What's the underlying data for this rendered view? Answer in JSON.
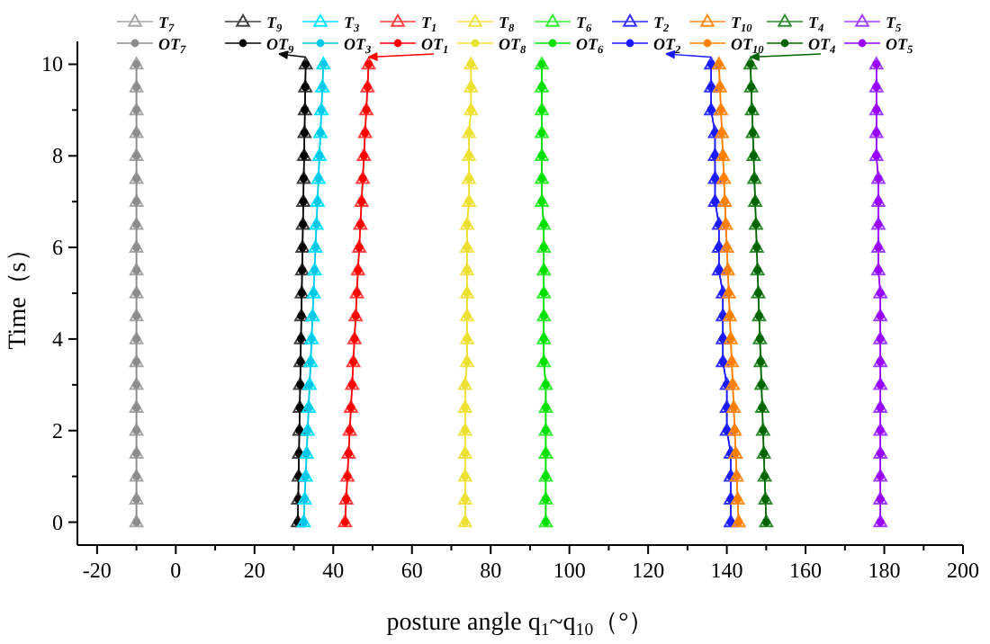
{
  "chart_data": {
    "type": "line",
    "xlabel": "posture angle q$_{1}$~q$_{10}$（°）",
    "ylabel": "Time（s）",
    "xlim": [
      -25,
      200
    ],
    "ylim": [
      -0.5,
      10.5
    ],
    "xticks": [
      -20,
      0,
      20,
      40,
      60,
      80,
      100,
      120,
      140,
      160,
      180,
      200
    ],
    "yticks": [
      0,
      2,
      4,
      6,
      8,
      10
    ],
    "grid": false,
    "legend": "top",
    "series": [
      {
        "name": "T$_{7}$",
        "color": "#a6a6a6",
        "marker": "triangle",
        "x": [
          -10,
          -10,
          -10,
          -10,
          -10,
          -10,
          -10,
          -10,
          -10,
          -10,
          -10,
          -10,
          -10,
          -10,
          -10,
          -10,
          -10,
          -10,
          -10,
          -10,
          -10
        ],
        "values": [
          0,
          0.5,
          1,
          1.5,
          2,
          2.5,
          3,
          3.5,
          4,
          4.5,
          5,
          5.5,
          6,
          6.5,
          7,
          7.5,
          8,
          8.5,
          9,
          9.5,
          10
        ]
      },
      {
        "name": "OT$_{7}$",
        "color": "#8c8c8c",
        "marker": "circle",
        "x": [
          -10,
          -10,
          -10,
          -10,
          -10,
          -10,
          -10,
          -10,
          -10,
          -10,
          -10,
          -10,
          -10,
          -10,
          -10,
          -10,
          -10,
          -10,
          -10,
          -10,
          -10
        ],
        "values": [
          0,
          0.5,
          1,
          1.5,
          2,
          2.5,
          3,
          3.5,
          4,
          4.5,
          5,
          5.5,
          6,
          6.5,
          7,
          7.5,
          8,
          8.5,
          9,
          9.5,
          10
        ]
      },
      {
        "name": "T$_{9}$",
        "color": "#404040",
        "marker": "triangle",
        "x": [
          31,
          31.1,
          31.2,
          31.3,
          31.4,
          31.5,
          31.6,
          31.7,
          31.8,
          31.9,
          32,
          32.1,
          32.2,
          32.3,
          32.4,
          32.5,
          32.6,
          32.7,
          32.8,
          32.9,
          33
        ],
        "values": [
          0,
          0.5,
          1,
          1.5,
          2,
          2.5,
          3,
          3.5,
          4,
          4.5,
          5,
          5.5,
          6,
          6.5,
          7,
          7.5,
          8,
          8.5,
          9,
          9.5,
          10
        ]
      },
      {
        "name": "OT$_{9}$",
        "color": "#000000",
        "marker": "circle",
        "x": [
          31,
          31.1,
          31.2,
          31.3,
          31.4,
          31.5,
          31.6,
          31.7,
          31.8,
          31.9,
          32,
          32.1,
          32.2,
          32.3,
          32.4,
          32.5,
          32.6,
          32.7,
          32.8,
          32.9,
          33
        ],
        "values": [
          0,
          0.5,
          1,
          1.5,
          2,
          2.5,
          3,
          3.5,
          4,
          4.5,
          5,
          5.5,
          6,
          6.5,
          7,
          7.5,
          8,
          8.5,
          9,
          9.5,
          10
        ]
      },
      {
        "name": "T$_{3}$",
        "color": "#00e5ff",
        "marker": "triangle",
        "x": [
          32.5,
          32.75,
          33,
          33.25,
          33.5,
          33.75,
          34,
          34.25,
          34.5,
          34.75,
          35,
          35.25,
          35.5,
          35.75,
          36,
          36.25,
          36.5,
          36.75,
          37,
          37.25,
          37.5
        ],
        "values": [
          0,
          0.5,
          1,
          1.5,
          2,
          2.5,
          3,
          3.5,
          4,
          4.5,
          5,
          5.5,
          6,
          6.5,
          7,
          7.5,
          8,
          8.5,
          9,
          9.5,
          10
        ]
      },
      {
        "name": "OT$_{3}$",
        "color": "#00c8e6",
        "marker": "circle",
        "x": [
          32.5,
          32.75,
          33,
          33.25,
          33.5,
          33.75,
          34,
          34.25,
          34.5,
          34.75,
          35,
          35.25,
          35.5,
          35.75,
          36,
          36.25,
          36.5,
          36.75,
          37,
          37.25,
          37.5
        ],
        "values": [
          0,
          0.5,
          1,
          1.5,
          2,
          2.5,
          3,
          3.5,
          4,
          4.5,
          5,
          5.5,
          6,
          6.5,
          7,
          7.5,
          8,
          8.5,
          9,
          9.5,
          10
        ]
      },
      {
        "name": "T$_{1}$",
        "color": "#ff4040",
        "marker": "triangle",
        "x": [
          43,
          43.3,
          43.6,
          43.9,
          44.2,
          44.5,
          44.8,
          45.1,
          45.4,
          45.7,
          46,
          46.3,
          46.6,
          46.9,
          47.2,
          47.5,
          47.8,
          48.1,
          48.4,
          48.7,
          49
        ],
        "values": [
          0,
          0.5,
          1,
          1.5,
          2,
          2.5,
          3,
          3.5,
          4,
          4.5,
          5,
          5.5,
          6,
          6.5,
          7,
          7.5,
          8,
          8.5,
          9,
          9.5,
          10
        ]
      },
      {
        "name": "OT$_{1}$",
        "color": "#ff0000",
        "marker": "circle",
        "x": [
          43,
          43.3,
          43.6,
          43.9,
          44.2,
          44.5,
          44.8,
          45.1,
          45.4,
          45.7,
          46,
          46.3,
          46.6,
          46.9,
          47.2,
          47.5,
          47.8,
          48.1,
          48.4,
          48.7,
          49
        ],
        "values": [
          0,
          0.5,
          1,
          1.5,
          2,
          2.5,
          3,
          3.5,
          4,
          4.5,
          5,
          5.5,
          6,
          6.5,
          7,
          7.5,
          8,
          8.5,
          9,
          9.5,
          10
        ]
      },
      {
        "name": "T$_{8}$",
        "color": "#f2e24a",
        "marker": "triangle",
        "x": [
          73.5,
          73.5,
          73.5,
          73.5,
          73.5,
          73.5,
          73.5,
          74,
          74,
          74,
          74,
          74,
          74,
          74,
          74.5,
          74.5,
          74.5,
          74.5,
          75,
          75,
          75
        ],
        "values": [
          0,
          0.5,
          1,
          1.5,
          2,
          2.5,
          3,
          3.5,
          4,
          4.5,
          5,
          5.5,
          6,
          6.5,
          7,
          7.5,
          8,
          8.5,
          9,
          9.5,
          10
        ]
      },
      {
        "name": "OT$_{8}$",
        "color": "#ece030",
        "marker": "circle",
        "x": [
          73.5,
          73.5,
          73.5,
          73.5,
          73.5,
          73.5,
          73.5,
          74,
          74,
          74,
          74,
          74,
          74,
          74,
          74.5,
          74.5,
          74.5,
          74.5,
          75,
          75,
          75
        ],
        "values": [
          0,
          0.5,
          1,
          1.5,
          2,
          2.5,
          3,
          3.5,
          4,
          4.5,
          5,
          5.5,
          6,
          6.5,
          7,
          7.5,
          8,
          8.5,
          9,
          9.5,
          10
        ]
      },
      {
        "name": "T$_{6}$",
        "color": "#33ee33",
        "marker": "triangle",
        "x": [
          94,
          94,
          94,
          94,
          94,
          94,
          94,
          93.5,
          93.5,
          93.5,
          93.5,
          93.5,
          93.5,
          93.5,
          93,
          93,
          93,
          93,
          93,
          93,
          93
        ],
        "values": [
          0,
          0.5,
          1,
          1.5,
          2,
          2.5,
          3,
          3.5,
          4,
          4.5,
          5,
          5.5,
          6,
          6.5,
          7,
          7.5,
          8,
          8.5,
          9,
          9.5,
          10
        ]
      },
      {
        "name": "OT$_{6}$",
        "color": "#00e000",
        "marker": "circle",
        "x": [
          94,
          94,
          94,
          94,
          94,
          94,
          94,
          93.5,
          93.5,
          93.5,
          93.5,
          93.5,
          93.5,
          93.5,
          93,
          93,
          93,
          93,
          93,
          93,
          93
        ],
        "values": [
          0,
          0.5,
          1,
          1.5,
          2,
          2.5,
          3,
          3.5,
          4,
          4.5,
          5,
          5.5,
          6,
          6.5,
          7,
          7.5,
          8,
          8.5,
          9,
          9.5,
          10
        ]
      },
      {
        "name": "T$_{2}$",
        "color": "#3333ff",
        "marker": "triangle",
        "x": [
          141,
          141,
          141,
          141,
          140,
          140,
          140,
          139,
          139,
          139,
          139,
          138,
          138,
          138,
          137,
          137,
          137,
          137,
          136,
          136,
          136
        ],
        "values": [
          0,
          0.5,
          1,
          1.5,
          2,
          2.5,
          3,
          3.5,
          4,
          4.5,
          5,
          5.5,
          6,
          6.5,
          7,
          7.5,
          8,
          8.5,
          9,
          9.5,
          10
        ]
      },
      {
        "name": "OT$_{2}$",
        "color": "#1a1aff",
        "marker": "circle",
        "x": [
          141,
          141,
          141,
          141,
          140,
          140,
          140,
          139,
          139,
          139,
          139,
          138,
          138,
          138,
          137,
          137,
          137,
          137,
          136,
          136,
          136
        ],
        "values": [
          0,
          0.5,
          1,
          1.5,
          2,
          2.5,
          3,
          3.5,
          4,
          4.5,
          5,
          5.5,
          6,
          6.5,
          7,
          7.5,
          8,
          8.5,
          9,
          9.5,
          10
        ]
      },
      {
        "name": "T$_{10}$",
        "color": "#ff8c1a",
        "marker": "triangle",
        "x": [
          143,
          142.75,
          142.5,
          142.25,
          142,
          141.75,
          141.5,
          141.25,
          141,
          140.75,
          140.5,
          140.25,
          140,
          139.75,
          139.5,
          139.25,
          139,
          138.75,
          138.5,
          138.25,
          138
        ],
        "values": [
          0,
          0.5,
          1,
          1.5,
          2,
          2.5,
          3,
          3.5,
          4,
          4.5,
          5,
          5.5,
          6,
          6.5,
          7,
          7.5,
          8,
          8.5,
          9,
          9.5,
          10
        ]
      },
      {
        "name": "OT$_{10}$",
        "color": "#ff8000",
        "marker": "circle",
        "x": [
          143,
          142.75,
          142.5,
          142.25,
          142,
          141.75,
          141.5,
          141.25,
          141,
          140.75,
          140.5,
          140.25,
          140,
          139.75,
          139.5,
          139.25,
          139,
          138.75,
          138.5,
          138.25,
          138
        ],
        "values": [
          0,
          0.5,
          1,
          1.5,
          2,
          2.5,
          3,
          3.5,
          4,
          4.5,
          5,
          5.5,
          6,
          6.5,
          7,
          7.5,
          8,
          8.5,
          9,
          9.5,
          10
        ]
      },
      {
        "name": "T$_{4}$",
        "color": "#2e8b2e",
        "marker": "triangle",
        "x": [
          150,
          149.8,
          149.6,
          149.4,
          149.2,
          149,
          148.8,
          148.6,
          148.4,
          148.2,
          148,
          147.8,
          147.6,
          147.4,
          147.2,
          147,
          146.8,
          146.6,
          146.4,
          146.2,
          146
        ],
        "values": [
          0,
          0.5,
          1,
          1.5,
          2,
          2.5,
          3,
          3.5,
          4,
          4.5,
          5,
          5.5,
          6,
          6.5,
          7,
          7.5,
          8,
          8.5,
          9,
          9.5,
          10
        ]
      },
      {
        "name": "OT$_{4}$",
        "color": "#006400",
        "marker": "circle",
        "x": [
          150,
          149.8,
          149.6,
          149.4,
          149.2,
          149,
          148.8,
          148.6,
          148.4,
          148.2,
          148,
          147.8,
          147.6,
          147.4,
          147.2,
          147,
          146.8,
          146.6,
          146.4,
          146.2,
          146
        ],
        "values": [
          0,
          0.5,
          1,
          1.5,
          2,
          2.5,
          3,
          3.5,
          4,
          4.5,
          5,
          5.5,
          6,
          6.5,
          7,
          7.5,
          8,
          8.5,
          9,
          9.5,
          10
        ]
      },
      {
        "name": "T$_{5}$",
        "color": "#a040ff",
        "marker": "triangle",
        "x": [
          179,
          179,
          179,
          179,
          179,
          179,
          179,
          179,
          179,
          179,
          179,
          178.5,
          178.5,
          178.5,
          178.5,
          178.5,
          178,
          178,
          178,
          178,
          178
        ],
        "values": [
          0,
          0.5,
          1,
          1.5,
          2,
          2.5,
          3,
          3.5,
          4,
          4.5,
          5,
          5.5,
          6,
          6.5,
          7,
          7.5,
          8,
          8.5,
          9,
          9.5,
          10
        ]
      },
      {
        "name": "OT$_{5}$",
        "color": "#9900ff",
        "marker": "circle",
        "x": [
          179,
          179,
          179,
          179,
          179,
          179,
          179,
          179,
          179,
          179,
          179,
          178.5,
          178.5,
          178.5,
          178.5,
          178.5,
          178,
          178,
          178,
          178,
          178
        ],
        "values": [
          0,
          0.5,
          1,
          1.5,
          2,
          2.5,
          3,
          3.5,
          4,
          4.5,
          5,
          5.5,
          6,
          6.5,
          7,
          7.5,
          8,
          8.5,
          9,
          9.5,
          10
        ]
      }
    ]
  }
}
